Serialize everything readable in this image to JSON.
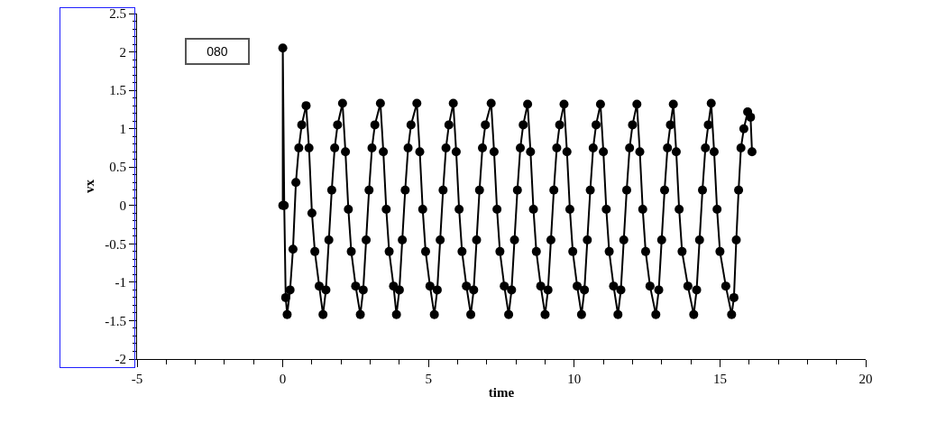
{
  "chart_data": {
    "type": "line",
    "xlabel": "time",
    "ylabel": "vx",
    "annotations": [
      "080"
    ],
    "xlim": [
      -5,
      20
    ],
    "xticks": [
      -5,
      0,
      5,
      10,
      15,
      20
    ],
    "ylim": [
      -2,
      2.5
    ],
    "yticks": [
      -2,
      -1.5,
      -1,
      -0.5,
      0,
      0.5,
      1,
      1.5,
      2,
      2.5
    ],
    "grid": false,
    "marker": "circle",
    "line_style": "solid",
    "series": [
      {
        "color": "#000000",
        "x": [
          0,
          0,
          0.05,
          0.1,
          0.15,
          0.25,
          0.35,
          0.45,
          0.55,
          0.65,
          0.8,
          0.9,
          1.0,
          1.1,
          1.25,
          1.38,
          1.48,
          1.58,
          1.68,
          1.78,
          1.88,
          2.05,
          2.15,
          2.25,
          2.35,
          2.5,
          2.66,
          2.76,
          2.86,
          2.96,
          3.06,
          3.16,
          3.35,
          3.45,
          3.55,
          3.65,
          3.8,
          3.9,
          4.0,
          4.1,
          4.2,
          4.3,
          4.4,
          4.6,
          4.7,
          4.8,
          4.9,
          5.05,
          5.2,
          5.3,
          5.4,
          5.5,
          5.6,
          5.7,
          5.85,
          5.95,
          6.05,
          6.15,
          6.3,
          6.45,
          6.55,
          6.65,
          6.75,
          6.85,
          6.95,
          7.15,
          7.25,
          7.35,
          7.45,
          7.6,
          7.75,
          7.85,
          7.95,
          8.05,
          8.15,
          8.25,
          8.4,
          8.5,
          8.6,
          8.7,
          8.85,
          9.0,
          9.1,
          9.2,
          9.3,
          9.4,
          9.5,
          9.65,
          9.75,
          9.85,
          9.95,
          10.1,
          10.25,
          10.35,
          10.45,
          10.55,
          10.65,
          10.75,
          10.9,
          11.0,
          11.1,
          11.2,
          11.35,
          11.5,
          11.6,
          11.7,
          11.8,
          11.9,
          12.0,
          12.15,
          12.25,
          12.35,
          12.45,
          12.6,
          12.8,
          12.9,
          13.0,
          13.1,
          13.2,
          13.3,
          13.4,
          13.5,
          13.6,
          13.7,
          13.9,
          14.1,
          14.2,
          14.3,
          14.4,
          14.5,
          14.6,
          14.7,
          14.8,
          14.9,
          15.0,
          15.2,
          15.4,
          15.48,
          15.56,
          15.64,
          15.72,
          15.82,
          15.95,
          16.05,
          16.1
        ],
        "values": [
          0,
          2.05,
          0,
          -1.2,
          -1.42,
          -1.1,
          -0.57,
          0.3,
          0.75,
          1.05,
          1.3,
          0.75,
          -0.1,
          -0.6,
          -1.05,
          -1.42,
          -1.1,
          -0.45,
          0.2,
          0.75,
          1.05,
          1.33,
          0.7,
          -0.05,
          -0.6,
          -1.05,
          -1.42,
          -1.1,
          -0.45,
          0.2,
          0.75,
          1.05,
          1.33,
          0.7,
          -0.05,
          -0.6,
          -1.05,
          -1.42,
          -1.1,
          -0.45,
          0.2,
          0.75,
          1.05,
          1.33,
          0.7,
          -0.05,
          -0.6,
          -1.05,
          -1.42,
          -1.1,
          -0.45,
          0.2,
          0.75,
          1.05,
          1.33,
          0.7,
          -0.05,
          -0.6,
          -1.05,
          -1.42,
          -1.1,
          -0.45,
          0.2,
          0.75,
          1.05,
          1.33,
          0.7,
          -0.05,
          -0.6,
          -1.05,
          -1.42,
          -1.1,
          -0.45,
          0.2,
          0.75,
          1.05,
          1.32,
          0.7,
          -0.05,
          -0.6,
          -1.05,
          -1.42,
          -1.1,
          -0.45,
          0.2,
          0.75,
          1.05,
          1.32,
          0.7,
          -0.05,
          -0.6,
          -1.05,
          -1.42,
          -1.1,
          -0.45,
          0.2,
          0.75,
          1.05,
          1.32,
          0.7,
          -0.05,
          -0.6,
          -1.05,
          -1.42,
          -1.1,
          -0.45,
          0.2,
          0.75,
          1.05,
          1.32,
          0.7,
          -0.05,
          -0.6,
          -1.05,
          -1.42,
          -1.1,
          -0.45,
          0.2,
          0.75,
          1.05,
          1.32,
          0.7,
          -0.05,
          -0.6,
          -1.05,
          -1.42,
          -1.1,
          -0.45,
          0.2,
          0.75,
          1.05,
          1.33,
          0.7,
          -0.05,
          -0.6,
          -1.05,
          -1.42,
          -1.2,
          -0.45,
          0.2,
          0.75,
          1.0,
          1.22,
          1.15,
          0.7
        ]
      }
    ]
  }
}
